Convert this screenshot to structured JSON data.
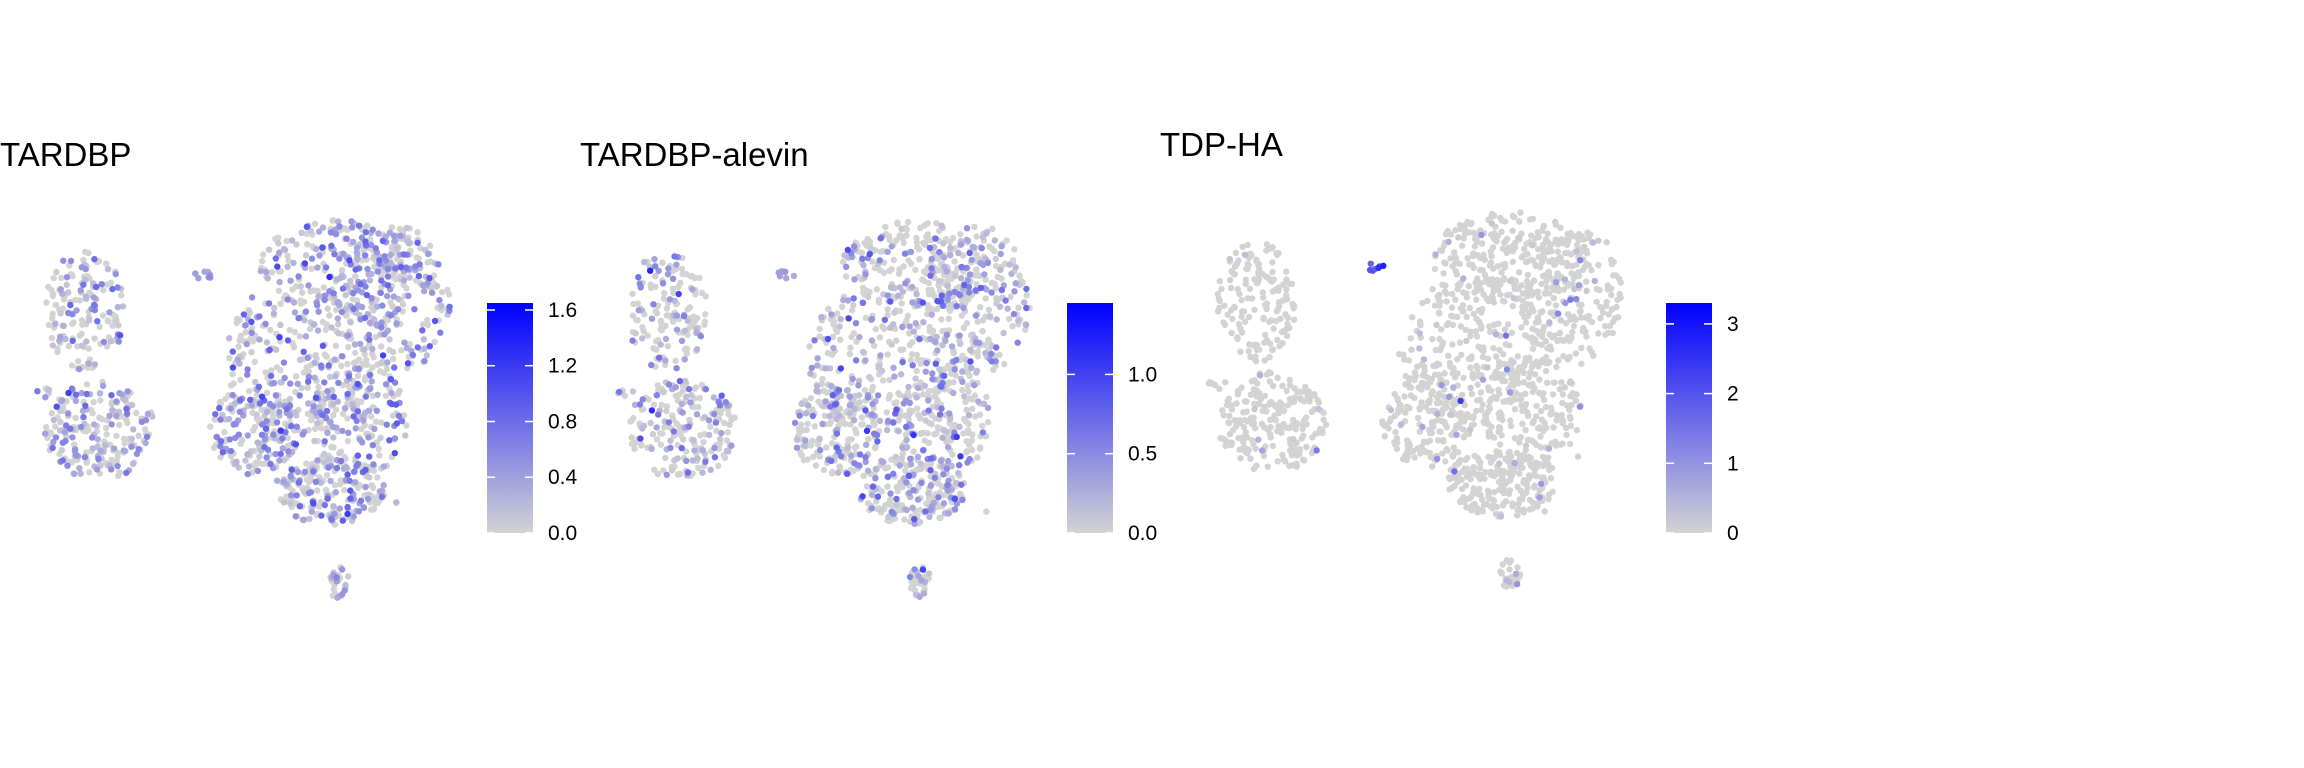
{
  "chart_data": [
    {
      "type": "scatter",
      "title": "TARDBP",
      "xlabel": "",
      "ylabel": "",
      "color_scale": {
        "low": "#d3d3d3",
        "high": "#0000ff",
        "range": [
          0,
          1.65
        ],
        "ticks": [
          "0.0",
          "0.4",
          "0.8",
          "1.2",
          "1.6"
        ],
        "tick_values": [
          0,
          0.4,
          0.8,
          1.2,
          1.6
        ]
      },
      "expression": {
        "mean": 0.35,
        "spread": 0.3,
        "expressed_fraction": 0.55,
        "hotspot_level": 0.55
      },
      "grid": false,
      "axes": false
    },
    {
      "type": "scatter",
      "title": "TARDBP-alevin",
      "xlabel": "",
      "ylabel": "",
      "color_scale": {
        "low": "#d3d3d3",
        "high": "#0000ff",
        "range": [
          0,
          1.45
        ],
        "ticks": [
          "0.0",
          "0.5",
          "1.0"
        ],
        "tick_values": [
          0,
          0.5,
          1.0
        ]
      },
      "expression": {
        "mean": 0.25,
        "spread": 0.3,
        "expressed_fraction": 0.4,
        "hotspot_level": 0.45
      },
      "grid": false,
      "axes": false
    },
    {
      "type": "scatter",
      "title": "TDP-HA",
      "xlabel": "",
      "ylabel": "",
      "color_scale": {
        "low": "#d3d3d3",
        "high": "#0000ff",
        "range": [
          0,
          3.3
        ],
        "ticks": [
          "0",
          "1",
          "2",
          "3"
        ],
        "tick_values": [
          0,
          1,
          2,
          3
        ]
      },
      "expression": {
        "mean": 0.2,
        "spread": 0.6,
        "expressed_fraction": 0.05,
        "hotspot_level": 2.8
      },
      "grid": false,
      "axes": false
    }
  ]
}
